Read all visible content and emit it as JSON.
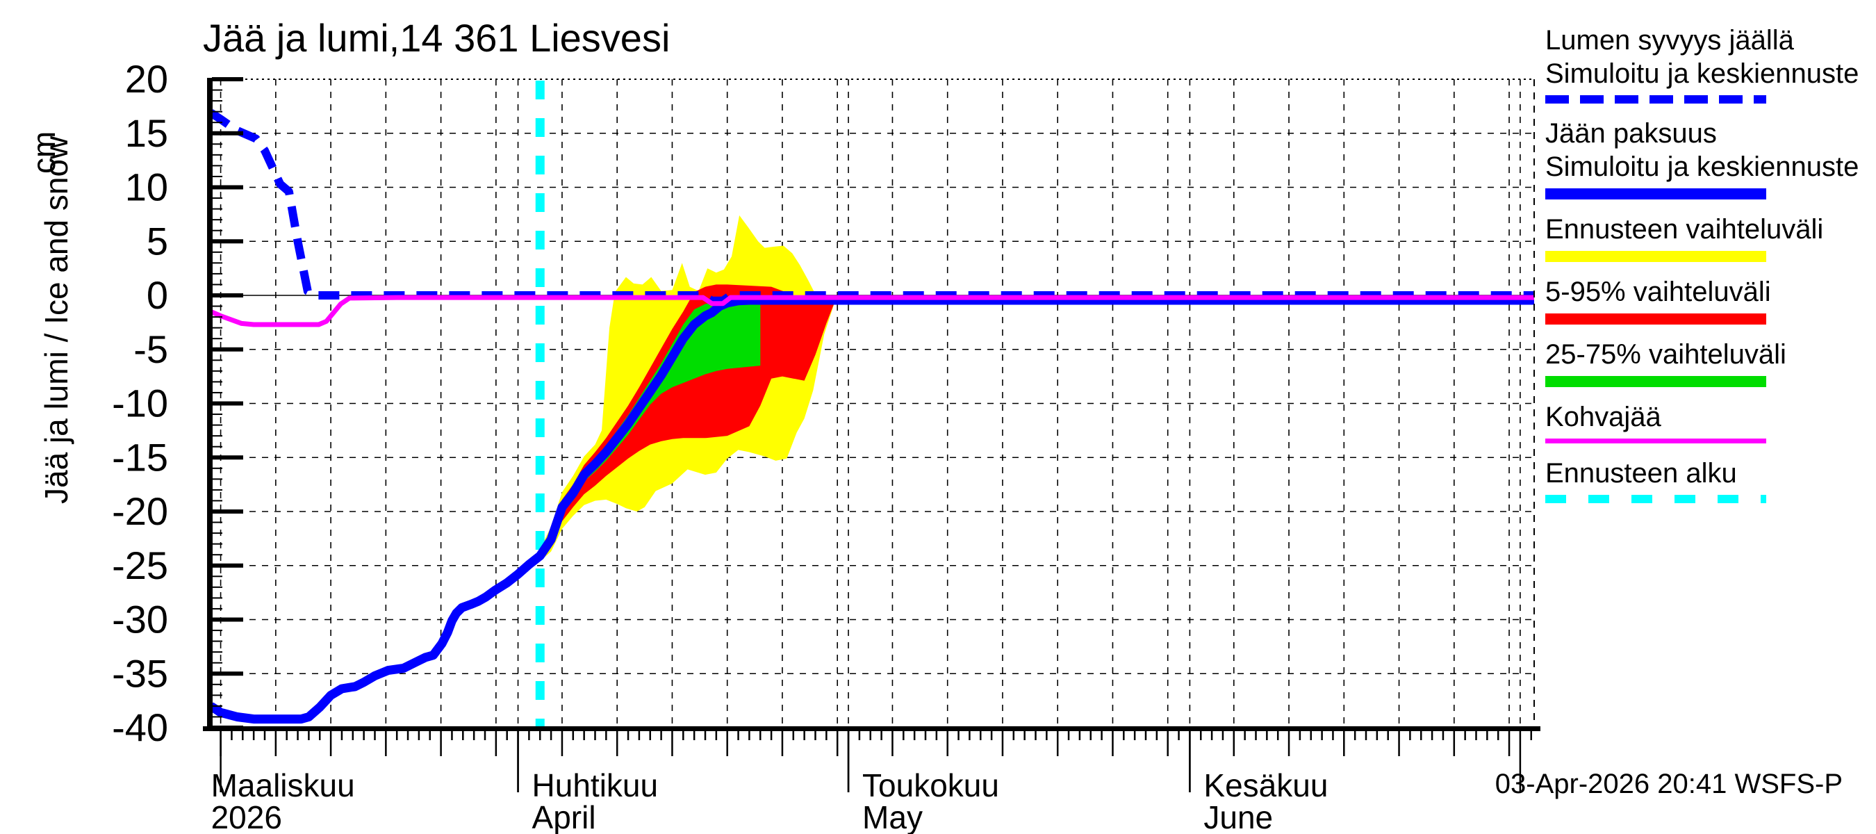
{
  "title": "Jää ja lumi,14 361 Liesvesi",
  "footer": "03-Apr-2026 20:41 WSFS-P",
  "y_axis": {
    "label": "Jää ja lumi / Ice and snow",
    "unit": "cm",
    "ticks": [
      20,
      15,
      10,
      5,
      0,
      -5,
      -10,
      -15,
      -20,
      -25,
      -30,
      -35,
      -40
    ],
    "range": [
      -40,
      20
    ]
  },
  "x_axis": {
    "year_start": "2026-03-01",
    "months": [
      {
        "label_fi": "Maaliskuu",
        "label_en": "2026",
        "tick_day": 4,
        "label_offset": -14
      },
      {
        "label_fi": "Huhtikuu",
        "label_en": "April",
        "tick_day": 31,
        "label_offset": 20
      },
      {
        "label_fi": "Toukokuu",
        "label_en": "May",
        "tick_day": 61,
        "label_offset": 20
      },
      {
        "label_fi": "Kesäkuu",
        "label_en": "June",
        "tick_day": 92,
        "label_offset": 20
      }
    ]
  },
  "legend": {
    "items": [
      {
        "label_lines": [
          "Lumen syvyys jäällä",
          "Simuloitu ja keskiennuste"
        ],
        "color": "#0000ff",
        "style": "dashed",
        "thickness": 12
      },
      {
        "label_lines": [
          "Jään paksuus",
          "Simuloitu ja keskiennuste"
        ],
        "color": "#0000ff",
        "style": "solid",
        "thickness": 16
      },
      {
        "label_lines": [
          "Ennusteen vaihteluväli"
        ],
        "color": "#ffff00",
        "style": "solid",
        "thickness": 16
      },
      {
        "label_lines": [
          "5-95% vaihteluväli"
        ],
        "color": "#ff0000",
        "style": "solid",
        "thickness": 16
      },
      {
        "label_lines": [
          "25-75% vaihteluväli"
        ],
        "color": "#00dd00",
        "style": "solid",
        "thickness": 16
      },
      {
        "label_lines": [
          "Kohvajää"
        ],
        "color": "#ff00ff",
        "style": "solid",
        "thickness": 7
      },
      {
        "label_lines": [
          "Ennusteen alku"
        ],
        "color": "#00ffff",
        "style": "dashed-sparse",
        "thickness": 12
      }
    ]
  },
  "chart_data": {
    "type": "line",
    "title": "Jää ja lumi,14 361 Liesvesi",
    "ylabel": "Jää ja lumi / Ice and snow (cm)",
    "ylim": [
      -40,
      20
    ],
    "x_unit": "days since 2026-03-01",
    "x_domain_days": [
      3.1,
      123.3
    ],
    "forecast_start_day": 33,
    "forecast_start_color": "#00ffff",
    "grid": true,
    "legend_position": "right",
    "series": [
      {
        "name": "ice_thickness_simulated_and_mean_forecast",
        "color": "#0000ff",
        "style": "solid",
        "width": 13,
        "points": [
          [
            3.1,
            -38.0
          ],
          [
            4,
            -38.6
          ],
          [
            5.5,
            -39.0
          ],
          [
            7,
            -39.2
          ],
          [
            9,
            -39.2
          ],
          [
            11.3,
            -39.2
          ],
          [
            12,
            -39.0
          ],
          [
            13,
            -38.1
          ],
          [
            14,
            -37.0
          ],
          [
            15,
            -36.4
          ],
          [
            16.2,
            -36.2
          ],
          [
            17,
            -35.8
          ],
          [
            18,
            -35.2
          ],
          [
            19.2,
            -34.7
          ],
          [
            20.6,
            -34.5
          ],
          [
            21.8,
            -33.9
          ],
          [
            22.6,
            -33.5
          ],
          [
            23.3,
            -33.3
          ],
          [
            24.1,
            -32.2
          ],
          [
            24.6,
            -31.2
          ],
          [
            25,
            -30.1
          ],
          [
            25.4,
            -29.4
          ],
          [
            25.9,
            -28.9
          ],
          [
            26.7,
            -28.6
          ],
          [
            27.4,
            -28.3
          ],
          [
            28.1,
            -27.9
          ],
          [
            28.9,
            -27.3
          ],
          [
            30,
            -26.6
          ],
          [
            31,
            -25.8
          ],
          [
            32,
            -24.9
          ],
          [
            33,
            -24.1
          ],
          [
            34,
            -22.6
          ],
          [
            35,
            -19.6
          ],
          [
            36,
            -18.3
          ],
          [
            37,
            -16.6
          ],
          [
            38,
            -15.6
          ],
          [
            39,
            -14.5
          ],
          [
            40,
            -13.2
          ],
          [
            41,
            -11.9
          ],
          [
            42,
            -10.4
          ],
          [
            43,
            -8.9
          ],
          [
            44,
            -7.4
          ],
          [
            45,
            -5.7
          ],
          [
            46,
            -4.0
          ],
          [
            47,
            -2.7
          ],
          [
            48,
            -1.9
          ],
          [
            48.6,
            -1.6
          ],
          [
            49.3,
            -1.0
          ],
          [
            50,
            -0.7
          ],
          [
            51,
            -0.5
          ],
          [
            52,
            -0.45
          ],
          [
            123.3,
            -0.45
          ]
        ]
      },
      {
        "name": "snow_depth_on_ice_simulated_and_mean_forecast",
        "color": "#0000ff",
        "style": "dashed",
        "width": 12,
        "points": [
          [
            3.1,
            16.9
          ],
          [
            4,
            16.3
          ],
          [
            5.4,
            15.3
          ],
          [
            7.2,
            14.5
          ],
          [
            8,
            13.4
          ],
          [
            9.4,
            10.3
          ],
          [
            10.2,
            9.6
          ],
          [
            11,
            5.0
          ],
          [
            11.9,
            0.4
          ],
          [
            12.7,
            0.0
          ],
          [
            47.8,
            0.0
          ],
          [
            48.6,
            -0.5
          ],
          [
            49.6,
            -0.5
          ],
          [
            50.3,
            0.0
          ],
          [
            123.3,
            0.0
          ]
        ]
      },
      {
        "name": "kohvajaa_snow_ice",
        "color": "#ff00ff",
        "style": "solid",
        "width": 7,
        "points": [
          [
            3.1,
            -1.5
          ],
          [
            4,
            -1.9
          ],
          [
            5.9,
            -2.6
          ],
          [
            7,
            -2.7
          ],
          [
            12.9,
            -2.7
          ],
          [
            13.6,
            -2.4
          ],
          [
            14.9,
            -0.8
          ],
          [
            15.7,
            -0.25
          ],
          [
            20,
            -0.2
          ],
          [
            47.8,
            -0.2
          ],
          [
            48.6,
            -0.75
          ],
          [
            49.6,
            -0.75
          ],
          [
            50.3,
            -0.2
          ],
          [
            123.3,
            -0.2
          ]
        ]
      }
    ],
    "bands": [
      {
        "name": "forecast_full_range",
        "color": "#ffff00",
        "upper": [
          [
            33,
            -23.5
          ],
          [
            34,
            -21.4
          ],
          [
            35,
            -18.2
          ],
          [
            36,
            -16.7
          ],
          [
            37,
            -14.9
          ],
          [
            38,
            -13.8
          ],
          [
            38.6,
            -12.5
          ],
          [
            39.3,
            -3.0
          ],
          [
            39.8,
            0.3
          ],
          [
            40.3,
            1.0
          ],
          [
            40.8,
            1.7
          ],
          [
            41.5,
            1.1
          ],
          [
            42.3,
            1.0
          ],
          [
            43.1,
            1.7
          ],
          [
            44,
            0.4
          ],
          [
            45,
            0.5
          ],
          [
            45.9,
            3.0
          ],
          [
            46.6,
            0.8
          ],
          [
            47.4,
            0.4
          ],
          [
            48.2,
            2.5
          ],
          [
            49,
            2.1
          ],
          [
            49.7,
            2.4
          ],
          [
            50.4,
            3.6
          ],
          [
            51.1,
            7.4
          ],
          [
            51.9,
            6.3
          ],
          [
            52.8,
            5.0
          ],
          [
            53.4,
            4.4
          ],
          [
            54.2,
            4.5
          ],
          [
            55.1,
            4.6
          ],
          [
            55.9,
            3.9
          ],
          [
            56.6,
            2.8
          ],
          [
            57.4,
            1.3
          ],
          [
            57.9,
            0.3
          ],
          [
            58.3,
            0.0
          ],
          [
            59.8,
            0.0
          ]
        ],
        "lower": [
          [
            33,
            -24.6
          ],
          [
            34,
            -23.7
          ],
          [
            35,
            -21.6
          ],
          [
            36,
            -20.4
          ],
          [
            37,
            -19.4
          ],
          [
            38,
            -19.0
          ],
          [
            39,
            -18.9
          ],
          [
            40,
            -19.3
          ],
          [
            40.8,
            -19.7
          ],
          [
            41.8,
            -20.0
          ],
          [
            42.5,
            -19.6
          ],
          [
            43.5,
            -18.1
          ],
          [
            45,
            -17.4
          ],
          [
            46.4,
            -16.1
          ],
          [
            48,
            -16.6
          ],
          [
            49,
            -16.4
          ],
          [
            50,
            -15.1
          ],
          [
            51,
            -14.3
          ],
          [
            52,
            -14.5
          ],
          [
            53.4,
            -14.9
          ],
          [
            54.4,
            -15.3
          ],
          [
            55.4,
            -15.1
          ],
          [
            56.3,
            -12.7
          ],
          [
            57,
            -11.4
          ],
          [
            57.8,
            -8.8
          ],
          [
            58.8,
            -3.6
          ],
          [
            59.8,
            -0.5
          ]
        ]
      },
      {
        "name": "range_5_95_percent",
        "color": "#ff0000",
        "upper": [
          [
            33,
            -23.7
          ],
          [
            34,
            -22.0
          ],
          [
            35,
            -18.9
          ],
          [
            36,
            -17.5
          ],
          [
            37,
            -15.7
          ],
          [
            38,
            -14.5
          ],
          [
            39,
            -13.2
          ],
          [
            40,
            -11.7
          ],
          [
            41,
            -10.2
          ],
          [
            42,
            -8.5
          ],
          [
            43,
            -6.7
          ],
          [
            44,
            -4.9
          ],
          [
            45,
            -3.1
          ],
          [
            46,
            -1.5
          ],
          [
            47,
            0.3
          ],
          [
            48,
            0.8
          ],
          [
            49,
            1.0
          ],
          [
            50,
            1.0
          ],
          [
            52,
            0.9
          ],
          [
            54,
            0.8
          ],
          [
            55.3,
            0.3
          ],
          [
            56,
            0.0
          ],
          [
            59.8,
            0.0
          ]
        ],
        "lower": [
          [
            33,
            -24.4
          ],
          [
            34,
            -23.2
          ],
          [
            35,
            -20.9
          ],
          [
            36,
            -19.6
          ],
          [
            37,
            -18.4
          ],
          [
            38,
            -17.6
          ],
          [
            39,
            -16.7
          ],
          [
            40,
            -15.9
          ],
          [
            41,
            -15.1
          ],
          [
            42,
            -14.4
          ],
          [
            43,
            -13.8
          ],
          [
            44,
            -13.5
          ],
          [
            45,
            -13.3
          ],
          [
            46,
            -13.2
          ],
          [
            48,
            -13.2
          ],
          [
            50,
            -13.0
          ],
          [
            52,
            -12.1
          ],
          [
            53,
            -10.2
          ],
          [
            54,
            -7.7
          ],
          [
            55,
            -7.5
          ],
          [
            56,
            -7.7
          ],
          [
            57,
            -7.9
          ],
          [
            58,
            -5.5
          ],
          [
            59,
            -2.6
          ],
          [
            59.8,
            -0.5
          ]
        ]
      },
      {
        "name": "range_25_75_percent",
        "color": "#00dd00",
        "upper": [
          [
            33,
            -23.9
          ],
          [
            34,
            -22.3
          ],
          [
            35,
            -19.2
          ],
          [
            36,
            -17.9
          ],
          [
            37,
            -16.1
          ],
          [
            38,
            -15.1
          ],
          [
            39,
            -13.9
          ],
          [
            40,
            -12.5
          ],
          [
            41,
            -11.1
          ],
          [
            42,
            -9.5
          ],
          [
            43,
            -7.9
          ],
          [
            44,
            -6.3
          ],
          [
            45,
            -4.5
          ],
          [
            46,
            -2.7
          ],
          [
            47,
            -1.3
          ],
          [
            48,
            -0.8
          ],
          [
            49,
            -0.6
          ],
          [
            53,
            -0.55
          ]
        ],
        "lower": [
          [
            33,
            -24.3
          ],
          [
            34,
            -22.9
          ],
          [
            35,
            -20.1
          ],
          [
            36,
            -19.0
          ],
          [
            37,
            -17.2
          ],
          [
            38,
            -16.3
          ],
          [
            39,
            -15.3
          ],
          [
            40,
            -14.1
          ],
          [
            41,
            -12.9
          ],
          [
            42,
            -11.5
          ],
          [
            43,
            -10.1
          ],
          [
            44,
            -9.1
          ],
          [
            45,
            -8.5
          ],
          [
            46,
            -8.1
          ],
          [
            47,
            -7.7
          ],
          [
            48,
            -7.3
          ],
          [
            49,
            -7.0
          ],
          [
            50,
            -6.8
          ],
          [
            52,
            -6.6
          ],
          [
            53,
            -6.5
          ]
        ]
      }
    ]
  }
}
